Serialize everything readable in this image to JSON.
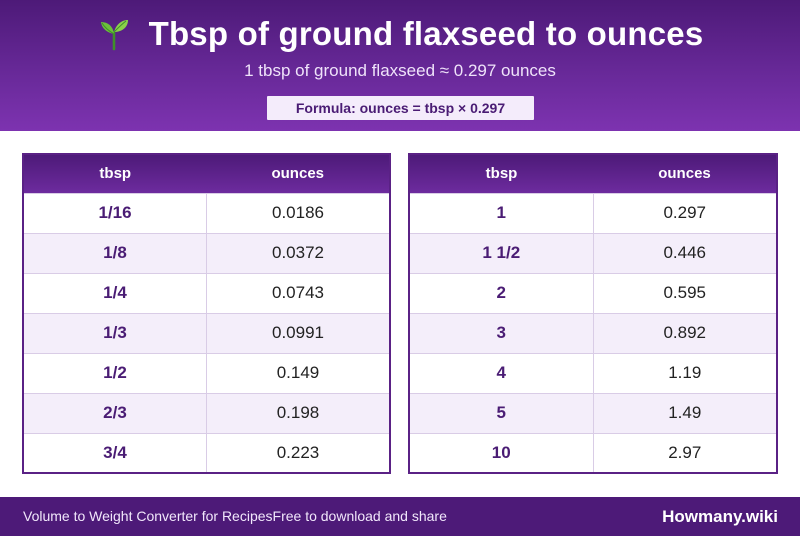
{
  "header": {
    "title": "Tbsp of ground flaxseed to ounces",
    "subtitle": "1 tbsp of ground flaxseed ≈ 0.297 ounces",
    "formula": "Formula: ounces = tbsp × 0.297",
    "icon": "seedling-icon"
  },
  "tables": {
    "left": {
      "headers": [
        "tbsp",
        "ounces"
      ],
      "rows": [
        [
          "1/16",
          "0.0186"
        ],
        [
          "1/8",
          "0.0372"
        ],
        [
          "1/4",
          "0.0743"
        ],
        [
          "1/3",
          "0.0991"
        ],
        [
          "1/2",
          "0.149"
        ],
        [
          "2/3",
          "0.198"
        ],
        [
          "3/4",
          "0.223"
        ]
      ]
    },
    "right": {
      "headers": [
        "tbsp",
        "ounces"
      ],
      "rows": [
        [
          "1",
          "0.297"
        ],
        [
          "1 1/2",
          "0.446"
        ],
        [
          "2",
          "0.595"
        ],
        [
          "3",
          "0.892"
        ],
        [
          "4",
          "1.19"
        ],
        [
          "5",
          "1.49"
        ],
        [
          "10",
          "2.97"
        ]
      ]
    }
  },
  "footer": {
    "left_text": "Volume to Weight Converter for Recipes",
    "middle_text": "Free to download and share",
    "brand": "Howmany.wiki"
  },
  "colors": {
    "brand_purple": "#4d1a78",
    "accent_text": "#4a1c74",
    "row_alt": "#f4eefa"
  }
}
